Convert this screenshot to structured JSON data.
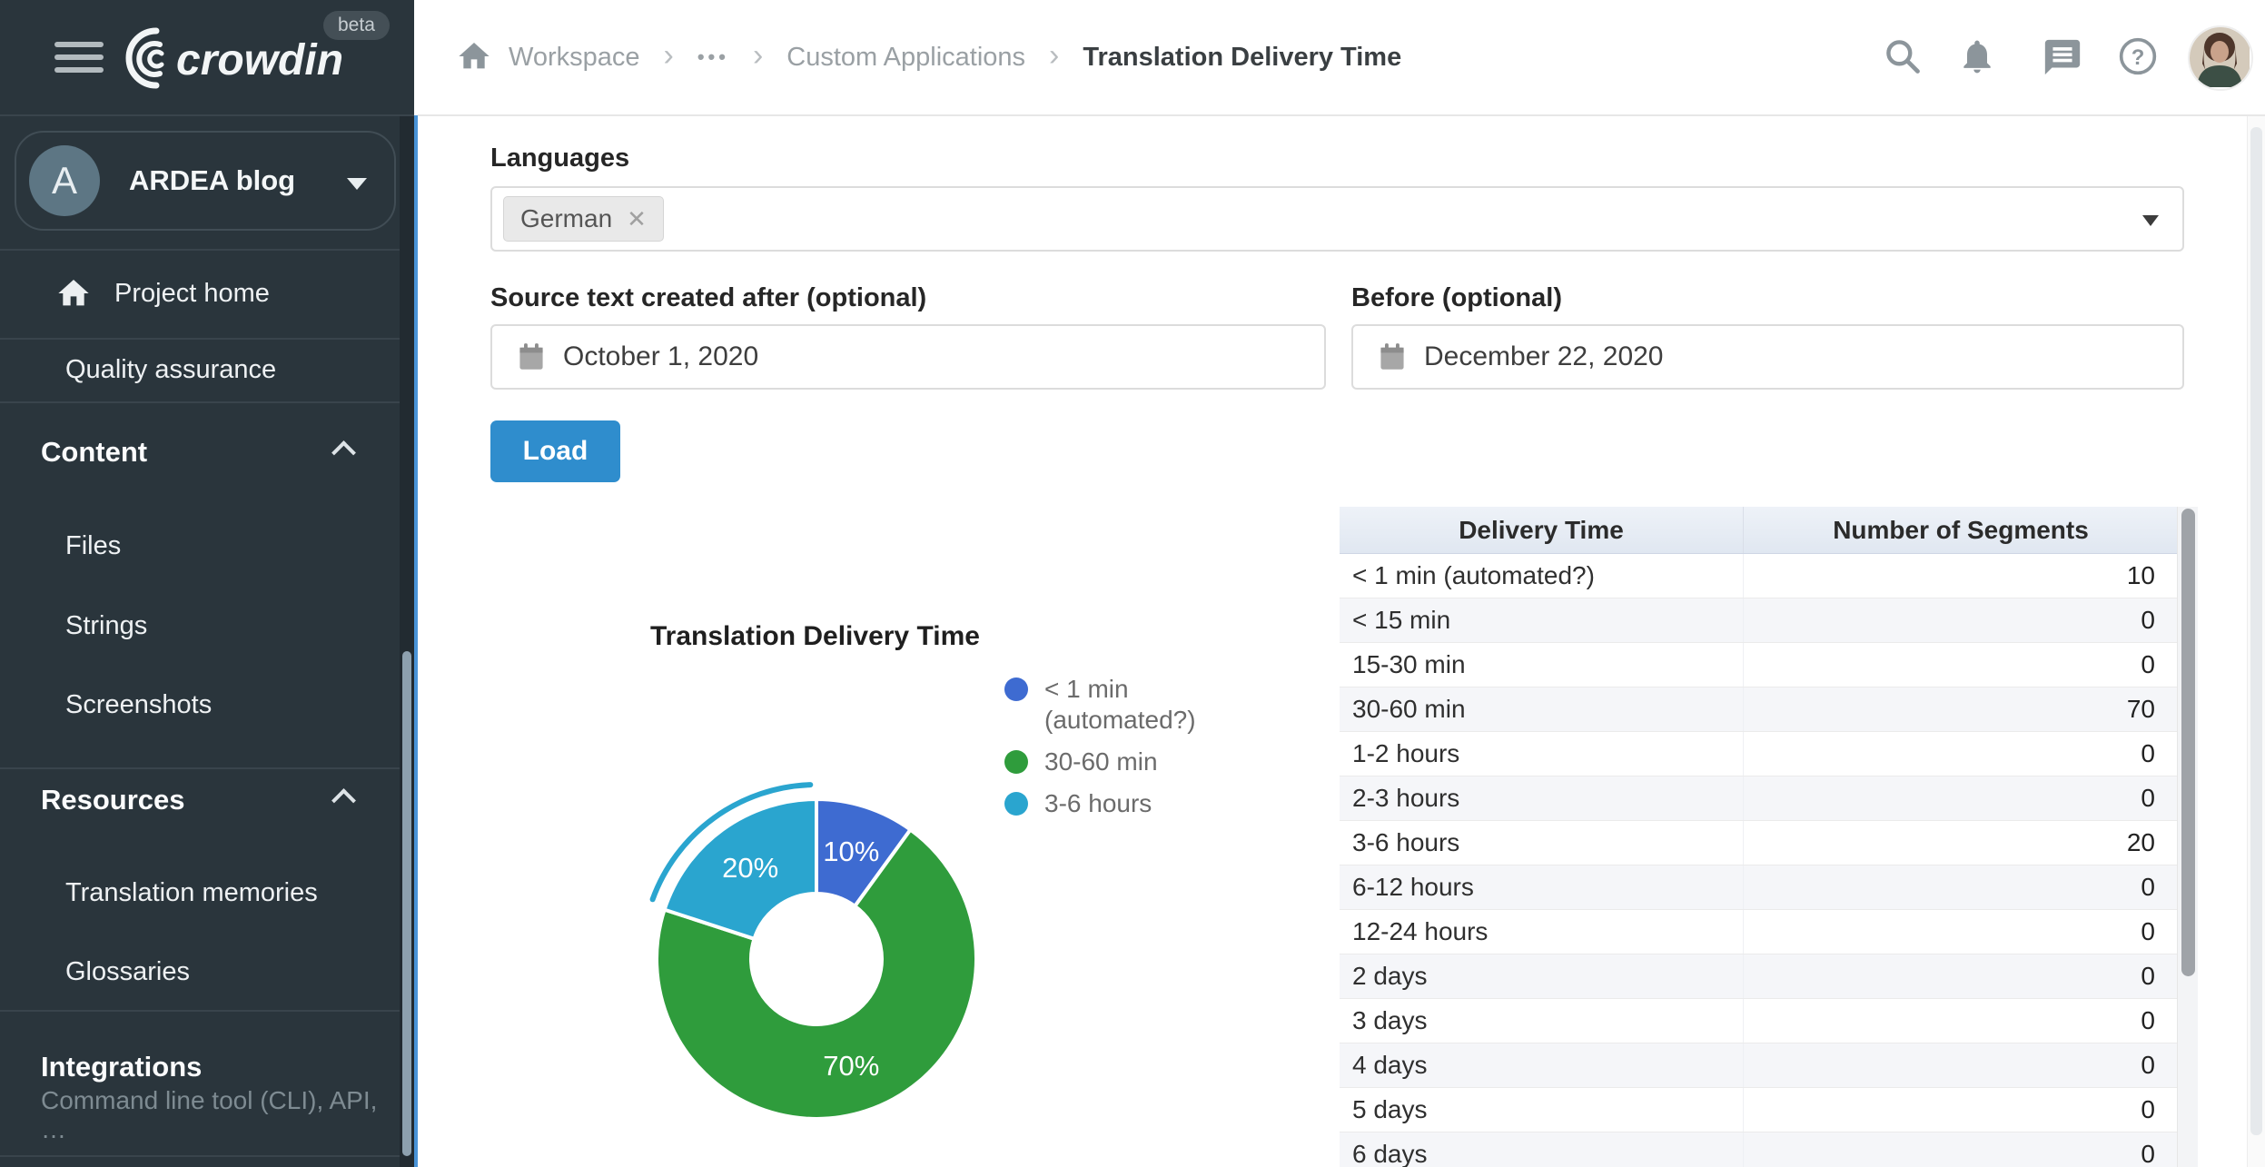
{
  "sidebar": {
    "brand": "crowdin",
    "beta_label": "beta",
    "project": {
      "avatar_letter": "A",
      "name": "ARDEA blog"
    },
    "nav": [
      {
        "label": "Project home"
      },
      {
        "label": "Quality assurance"
      }
    ],
    "sections": [
      {
        "label": "Content",
        "items": [
          "Files",
          "Strings",
          "Screenshots"
        ]
      },
      {
        "label": "Resources",
        "items": [
          "Translation memories",
          "Glossaries"
        ]
      },
      {
        "label": "Integrations",
        "subtitle": "Command line tool (CLI), API, …"
      }
    ]
  },
  "header": {
    "breadcrumb": [
      "Workspace",
      "•••",
      "Custom Applications",
      "Translation Delivery Time"
    ]
  },
  "filters": {
    "languages_label": "Languages",
    "selected_language": "German",
    "after_label": "Source text created after (optional)",
    "after_value": "October 1, 2020",
    "before_label": "Before (optional)",
    "before_value": "December 22, 2020",
    "load_label": "Load",
    "load_color": "#2f8dcd"
  },
  "chart_data": {
    "type": "pie",
    "donut": true,
    "title": "Translation Delivery Time",
    "legend_position": "right",
    "segments": [
      {
        "label": "< 1 min (automated?)",
        "value": 10,
        "percent": "10%",
        "color": "#3e6bd1",
        "selected": false
      },
      {
        "label": "30-60 min",
        "value": 70,
        "percent": "70%",
        "color": "#2f9c3c",
        "selected": false
      },
      {
        "label": "3-6 hours",
        "value": 20,
        "percent": "20%",
        "color": "#2aa5cf",
        "selected": true
      }
    ]
  },
  "table": {
    "headers": [
      "Delivery Time",
      "Number of Segments"
    ],
    "rows": [
      {
        "label": "< 1 min (automated?)",
        "value": 10
      },
      {
        "label": "< 15 min",
        "value": 0
      },
      {
        "label": "15-30 min",
        "value": 0
      },
      {
        "label": "30-60 min",
        "value": 70
      },
      {
        "label": "1-2 hours",
        "value": 0
      },
      {
        "label": "2-3 hours",
        "value": 0
      },
      {
        "label": "3-6 hours",
        "value": 20
      },
      {
        "label": "6-12 hours",
        "value": 0
      },
      {
        "label": "12-24 hours",
        "value": 0
      },
      {
        "label": "2 days",
        "value": 0
      },
      {
        "label": "3 days",
        "value": 0
      },
      {
        "label": "4 days",
        "value": 0
      },
      {
        "label": "5 days",
        "value": 0
      },
      {
        "label": "6 days",
        "value": 0
      }
    ]
  }
}
